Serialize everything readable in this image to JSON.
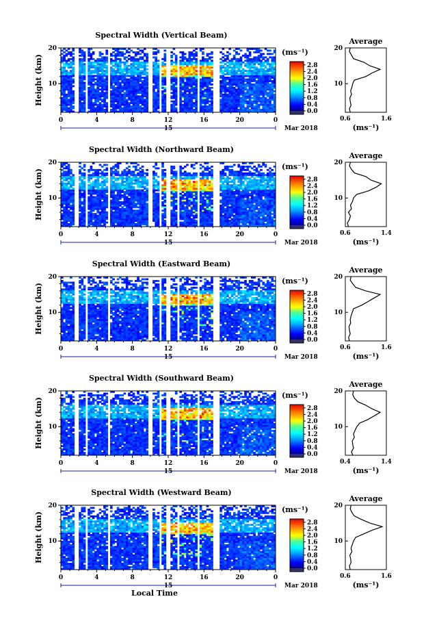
{
  "chart_data": [
    {
      "type": "heatmap",
      "title": "Spectral Width (Vertical Beam)",
      "ylabel": "Height (km)",
      "yticks": [
        "20",
        "10"
      ],
      "xticks": [
        "0",
        "4",
        "8",
        "12",
        "16",
        "20",
        "0"
      ],
      "xlim": [
        0,
        24
      ],
      "ylim": [
        2,
        20
      ],
      "day_label": "15",
      "month_label": "Mar 2018",
      "colorbar": {
        "unit": "(ms⁻¹)",
        "ticks": [
          "2.8",
          "2.4",
          "2.0",
          "1.6",
          "1.2",
          "0.8",
          "0.4",
          "0.0"
        ],
        "range": [
          0,
          3.0
        ]
      },
      "data_gaps_hours": [
        [
          1.6,
          2.0
        ],
        [
          2.7,
          3.0
        ],
        [
          5.2,
          5.6
        ],
        [
          9.8,
          10.2
        ],
        [
          10.9,
          11.2
        ],
        [
          11.8,
          12.3
        ],
        [
          13.0,
          13.3
        ],
        [
          15.2,
          15.6
        ],
        [
          17.0,
          17.8
        ]
      ],
      "average": {
        "title": "Average",
        "xlabel": "(ms⁻¹)",
        "xticks": [
          "0.6",
          "1.6"
        ],
        "xlim": [
          0.6,
          1.6
        ],
        "yticks": [
          "20",
          "10"
        ],
        "height_km": [
          2,
          3,
          4,
          5,
          6,
          7,
          8,
          9,
          10,
          11,
          12,
          13,
          14,
          15,
          16,
          17,
          18,
          19,
          20
        ],
        "width_ms": [
          0.72,
          0.7,
          0.74,
          0.72,
          0.71,
          0.75,
          0.73,
          0.76,
          0.78,
          0.82,
          1.1,
          1.25,
          1.45,
          1.2,
          1.05,
          0.8,
          0.75,
          0.7,
          0.72
        ]
      }
    },
    {
      "type": "heatmap",
      "title": "Spectral Width (Northward Beam)",
      "ylabel": "Height (km)",
      "yticks": [
        "20",
        "10"
      ],
      "xticks": [
        "0",
        "4",
        "8",
        "12",
        "16",
        "20",
        "0"
      ],
      "xlim": [
        0,
        24
      ],
      "ylim": [
        2,
        20
      ],
      "day_label": "15",
      "month_label": "Mar 2018",
      "colorbar": {
        "unit": "(ms⁻¹)",
        "ticks": [
          "2.8",
          "2.4",
          "2.0",
          "1.6",
          "1.2",
          "0.8",
          "0.4",
          "0.0"
        ],
        "range": [
          0,
          3.0
        ]
      },
      "data_gaps_hours": [
        [
          1.6,
          2.0
        ],
        [
          2.7,
          3.0
        ],
        [
          5.2,
          5.6
        ],
        [
          9.8,
          10.2
        ],
        [
          10.9,
          11.2
        ],
        [
          11.8,
          12.3
        ],
        [
          13.0,
          13.3
        ],
        [
          15.2,
          15.6
        ],
        [
          17.0,
          17.8
        ]
      ],
      "average": {
        "title": "Average",
        "xlabel": "(ms⁻¹)",
        "xticks": [
          "0.6",
          "1.4"
        ],
        "xlim": [
          0.6,
          1.4
        ],
        "yticks": [
          "20",
          "10"
        ],
        "height_km": [
          2,
          3,
          4,
          5,
          6,
          7,
          8,
          9,
          10,
          11,
          12,
          13,
          14,
          15,
          16,
          17,
          18,
          19,
          20
        ],
        "width_ms": [
          0.66,
          0.64,
          0.68,
          0.7,
          0.66,
          0.72,
          0.7,
          0.74,
          0.76,
          0.82,
          1.05,
          1.2,
          1.3,
          1.1,
          1.0,
          0.78,
          0.72,
          0.68,
          0.7
        ]
      }
    },
    {
      "type": "heatmap",
      "title": "Spectral Width (Eastward Beam)",
      "ylabel": "Height (km)",
      "yticks": [
        "20",
        "10"
      ],
      "xticks": [
        "0",
        "4",
        "8",
        "12",
        "16",
        "20",
        "0"
      ],
      "xlim": [
        0,
        24
      ],
      "ylim": [
        2,
        20
      ],
      "day_label": "15",
      "month_label": "Mar 2018",
      "colorbar": {
        "unit": "(ms⁻¹)",
        "ticks": [
          "2.8",
          "2.4",
          "2.0",
          "1.6",
          "1.2",
          "0.8",
          "0.4",
          "0.0"
        ],
        "range": [
          0,
          3.0
        ]
      },
      "data_gaps_hours": [
        [
          1.6,
          2.0
        ],
        [
          2.7,
          3.0
        ],
        [
          5.2,
          5.6
        ],
        [
          9.8,
          10.2
        ],
        [
          10.9,
          11.2
        ],
        [
          11.8,
          12.3
        ],
        [
          13.0,
          13.3
        ],
        [
          15.2,
          15.6
        ],
        [
          17.0,
          17.8
        ]
      ],
      "average": {
        "title": "Average",
        "xlabel": "(ms⁻¹)",
        "xticks": [
          "0.6",
          "1.6"
        ],
        "xlim": [
          0.6,
          1.6
        ],
        "yticks": [
          "20",
          "10"
        ],
        "height_km": [
          2,
          3,
          4,
          5,
          6,
          7,
          8,
          9,
          10,
          11,
          12,
          13,
          14,
          15,
          16,
          17,
          18,
          19,
          20
        ],
        "width_ms": [
          0.7,
          0.68,
          0.72,
          0.7,
          0.69,
          0.73,
          0.72,
          0.74,
          0.77,
          0.8,
          1.0,
          1.15,
          1.3,
          1.45,
          1.1,
          0.85,
          0.78,
          0.72,
          0.74
        ]
      }
    },
    {
      "type": "heatmap",
      "title": "Spectral Width (Southward Beam)",
      "ylabel": "Height (km)",
      "yticks": [
        "20",
        "10"
      ],
      "xticks": [
        "0",
        "4",
        "8",
        "12",
        "16",
        "20",
        "0"
      ],
      "xlim": [
        0,
        24
      ],
      "ylim": [
        2,
        20
      ],
      "day_label": "15",
      "month_label": "Mar 2018",
      "colorbar": {
        "unit": "(ms⁻¹)",
        "ticks": [
          "2.8",
          "2.4",
          "2.0",
          "1.6",
          "1.2",
          "0.8",
          "0.4",
          "0.0"
        ],
        "range": [
          0,
          3.0
        ]
      },
      "data_gaps_hours": [
        [
          1.6,
          2.0
        ],
        [
          2.7,
          3.0
        ],
        [
          5.2,
          5.6
        ],
        [
          9.8,
          10.2
        ],
        [
          10.9,
          11.2
        ],
        [
          11.8,
          12.3
        ],
        [
          13.0,
          13.3
        ],
        [
          15.2,
          15.6
        ],
        [
          17.0,
          17.8
        ]
      ],
      "average": {
        "title": "Average",
        "xlabel": "(ms⁻¹)",
        "xticks": [
          "0.4",
          "1.4"
        ],
        "xlim": [
          0.4,
          1.4
        ],
        "yticks": [
          "20",
          "10"
        ],
        "height_km": [
          2,
          3,
          4,
          5,
          6,
          7,
          8,
          9,
          10,
          11,
          12,
          13,
          14,
          15,
          16,
          17,
          18,
          19,
          20
        ],
        "width_ms": [
          0.58,
          0.55,
          0.6,
          0.58,
          0.57,
          0.62,
          0.6,
          0.64,
          0.68,
          0.75,
          0.95,
          1.1,
          1.25,
          1.05,
          0.9,
          0.7,
          0.62,
          0.58,
          0.6
        ]
      }
    },
    {
      "type": "heatmap",
      "title": "Spectral Width (Westward Beam)",
      "ylabel": "Height (km)",
      "xlabel": "Local Time",
      "yticks": [
        "20",
        "10"
      ],
      "xticks": [
        "0",
        "4",
        "8",
        "12",
        "16",
        "20",
        "0"
      ],
      "xlim": [
        0,
        24
      ],
      "ylim": [
        2,
        20
      ],
      "day_label": "15",
      "month_label": "Mar 2018",
      "colorbar": {
        "unit": "(ms⁻¹)",
        "ticks": [
          "2.8",
          "2.4",
          "2.0",
          "1.6",
          "1.2",
          "0.8",
          "0.4",
          "0.0"
        ],
        "range": [
          0,
          3.0
        ]
      },
      "data_gaps_hours": [
        [
          1.6,
          2.0
        ],
        [
          2.7,
          3.0
        ],
        [
          5.2,
          5.6
        ],
        [
          9.8,
          10.2
        ],
        [
          10.9,
          11.2
        ],
        [
          11.8,
          12.3
        ],
        [
          13.0,
          13.3
        ],
        [
          15.2,
          15.6
        ],
        [
          17.0,
          17.8
        ]
      ],
      "average": {
        "title": "Average",
        "xlabel": "(ms⁻¹)",
        "xticks": [
          "0.6",
          "1.6"
        ],
        "xlim": [
          0.6,
          1.6
        ],
        "yticks": [
          "20",
          "10"
        ],
        "height_km": [
          2,
          3,
          4,
          5,
          6,
          7,
          8,
          9,
          10,
          11,
          12,
          13,
          14,
          15,
          16,
          17,
          18,
          19,
          20
        ],
        "width_ms": [
          0.72,
          0.7,
          0.74,
          0.73,
          0.71,
          0.76,
          0.74,
          0.77,
          0.8,
          0.85,
          1.05,
          1.25,
          1.5,
          1.2,
          1.0,
          0.82,
          0.76,
          0.72,
          0.74
        ]
      }
    }
  ]
}
